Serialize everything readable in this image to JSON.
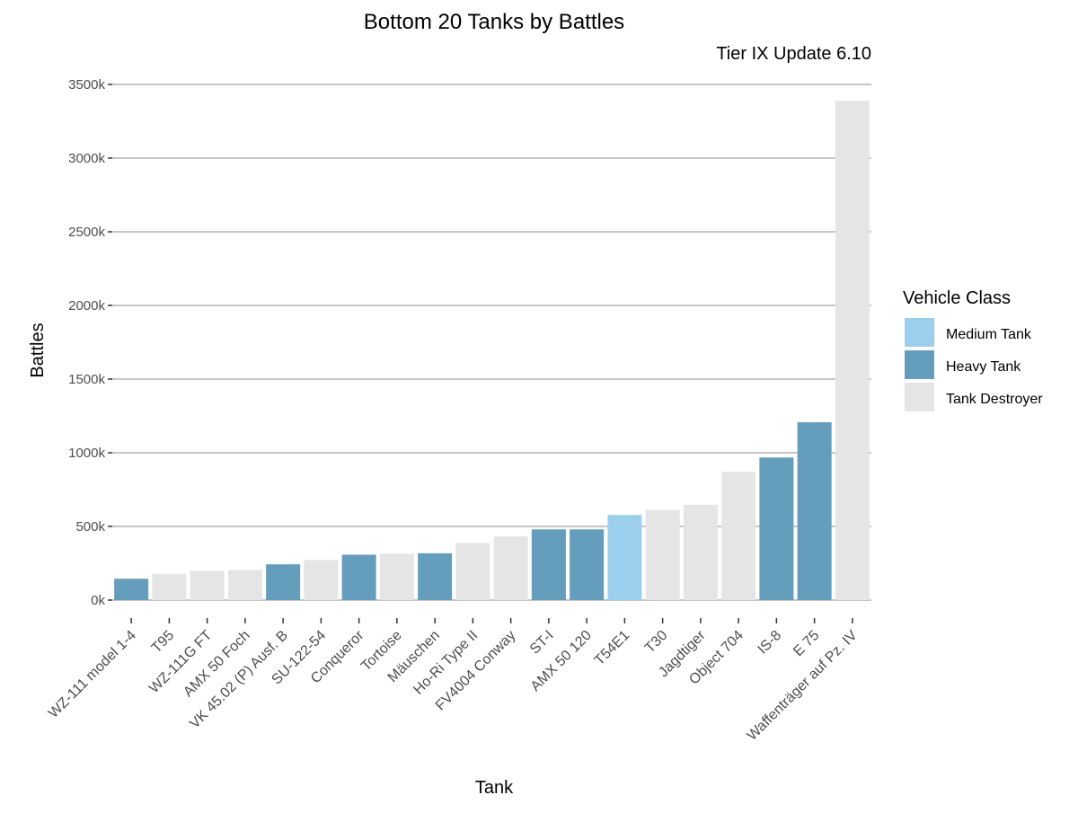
{
  "chart_data": {
    "type": "bar",
    "title": "Bottom 20 Tanks by Battles",
    "subtitle": "Tier IX Update 6.10",
    "xlabel": "Tank",
    "ylabel": "Battles",
    "ylim": [
      0,
      3500000
    ],
    "y_ticks": [
      0,
      500000,
      1000000,
      1500000,
      2000000,
      2500000,
      3000000,
      3500000
    ],
    "y_tick_labels": [
      "0k",
      "500k",
      "1000k",
      "1500k",
      "2000k",
      "2500k",
      "3000k",
      "3500k"
    ],
    "grid": true,
    "legend": {
      "title": "Vehicle Class",
      "position": "right",
      "entries": [
        {
          "label": "Medium Tank",
          "color": "#9ccfed"
        },
        {
          "label": "Heavy Tank",
          "color": "#659ebd"
        },
        {
          "label": "Tank Destroyer",
          "color": "#e5e5e5"
        }
      ]
    },
    "categories": [
      "WZ-111 model 1-4",
      "T95",
      "WZ-111G FT",
      "AMX 50 Foch",
      "VK 45.02 (P) Ausf. B",
      "SU-122-54",
      "Conqueror",
      "Tortoise",
      "Mäuschen",
      "Ho-Ri Type II",
      "FV4004 Conway",
      "ST-I",
      "AMX 50 120",
      "T54E1",
      "T30",
      "Jagdtiger",
      "Object 704",
      "IS-8",
      "E 75",
      "Waffenträger auf Pz. IV"
    ],
    "values": [
      145000,
      178000,
      198000,
      205000,
      243000,
      272000,
      308000,
      315000,
      318000,
      387000,
      432000,
      480000,
      480000,
      578000,
      612000,
      647000,
      872000,
      968000,
      1207000,
      3390000
    ],
    "classes": [
      "Heavy Tank",
      "Tank Destroyer",
      "Tank Destroyer",
      "Tank Destroyer",
      "Heavy Tank",
      "Tank Destroyer",
      "Heavy Tank",
      "Tank Destroyer",
      "Heavy Tank",
      "Tank Destroyer",
      "Tank Destroyer",
      "Heavy Tank",
      "Heavy Tank",
      "Medium Tank",
      "Tank Destroyer",
      "Tank Destroyer",
      "Tank Destroyer",
      "Heavy Tank",
      "Heavy Tank",
      "Tank Destroyer"
    ]
  }
}
